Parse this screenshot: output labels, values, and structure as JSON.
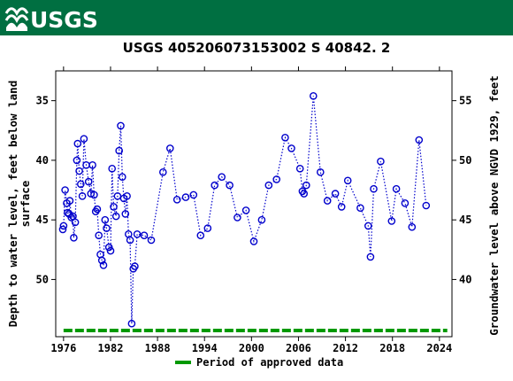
{
  "header": {
    "logo_text": "USGS",
    "background_color": "#006f41",
    "logo_icon": "usgs-wave-icon"
  },
  "chart_data": {
    "type": "scatter",
    "title": "USGS 405206073153002 S 40842. 2",
    "ylabel_left": [
      "Depth to water level, feet below land",
      "surface"
    ],
    "ylabel_right": "Groundwater level above NGVD 1929, feet",
    "x_ticks": [
      1976,
      1982,
      1988,
      1994,
      2000,
      2006,
      2012,
      2018,
      2024
    ],
    "xlim": [
      1975,
      2025.6
    ],
    "y_left_ticks": [
      35,
      40,
      45,
      50
    ],
    "y_left_lim": [
      32.5,
      54.8
    ],
    "y_left_inverted": true,
    "y_right_ticks": [
      55,
      50,
      45,
      40
    ],
    "series_color": "#0000cc",
    "marker": "open-circle",
    "line_style": "dotted",
    "points": [
      [
        1975.9,
        45.8
      ],
      [
        1976.0,
        45.5
      ],
      [
        1976.2,
        42.5
      ],
      [
        1976.4,
        43.6
      ],
      [
        1976.5,
        44.4
      ],
      [
        1976.7,
        44.5
      ],
      [
        1976.8,
        43.4
      ],
      [
        1977.0,
        44.8
      ],
      [
        1977.2,
        44.7
      ],
      [
        1977.3,
        46.5
      ],
      [
        1977.5,
        45.2
      ],
      [
        1977.7,
        40.0
      ],
      [
        1977.8,
        38.6
      ],
      [
        1978.0,
        40.9
      ],
      [
        1978.2,
        42.0
      ],
      [
        1978.4,
        43.0
      ],
      [
        1978.6,
        38.2
      ],
      [
        1978.9,
        40.4
      ],
      [
        1979.2,
        41.8
      ],
      [
        1979.5,
        42.8
      ],
      [
        1979.7,
        40.4
      ],
      [
        1979.9,
        42.9
      ],
      [
        1980.1,
        44.3
      ],
      [
        1980.3,
        44.1
      ],
      [
        1980.5,
        46.3
      ],
      [
        1980.7,
        47.9
      ],
      [
        1980.9,
        48.4
      ],
      [
        1981.1,
        48.8
      ],
      [
        1981.3,
        45.0
      ],
      [
        1981.5,
        45.7
      ],
      [
        1981.8,
        47.3
      ],
      [
        1982.0,
        47.6
      ],
      [
        1982.2,
        40.7
      ],
      [
        1982.4,
        43.9
      ],
      [
        1982.7,
        44.7
      ],
      [
        1982.9,
        43.0
      ],
      [
        1983.1,
        39.2
      ],
      [
        1983.3,
        37.1
      ],
      [
        1983.5,
        41.4
      ],
      [
        1983.7,
        43.2
      ],
      [
        1983.9,
        44.5
      ],
      [
        1984.1,
        43.0
      ],
      [
        1984.3,
        46.2
      ],
      [
        1984.5,
        46.7
      ],
      [
        1984.7,
        53.7
      ],
      [
        1984.9,
        49.1
      ],
      [
        1985.1,
        48.9
      ],
      [
        1985.4,
        46.2
      ],
      [
        1986.3,
        46.3
      ],
      [
        1987.2,
        46.7
      ],
      [
        1988.7,
        41.0
      ],
      [
        1989.6,
        39.0
      ],
      [
        1990.5,
        43.3
      ],
      [
        1991.6,
        43.1
      ],
      [
        1992.6,
        42.9
      ],
      [
        1993.5,
        46.3
      ],
      [
        1994.4,
        45.7
      ],
      [
        1995.3,
        42.1
      ],
      [
        1996.2,
        41.4
      ],
      [
        1997.2,
        42.1
      ],
      [
        1998.2,
        44.8
      ],
      [
        1999.3,
        44.2
      ],
      [
        2000.3,
        46.8
      ],
      [
        2001.3,
        45.0
      ],
      [
        2002.2,
        42.1
      ],
      [
        2003.2,
        41.6
      ],
      [
        2004.3,
        38.1
      ],
      [
        2005.1,
        39.0
      ],
      [
        2006.2,
        40.7
      ],
      [
        2006.5,
        42.6
      ],
      [
        2006.7,
        42.8
      ],
      [
        2007.0,
        42.1
      ],
      [
        2007.9,
        34.6
      ],
      [
        2008.8,
        41.0
      ],
      [
        2009.7,
        43.4
      ],
      [
        2010.7,
        42.8
      ],
      [
        2011.5,
        43.9
      ],
      [
        2012.3,
        41.7
      ],
      [
        2013.9,
        44.0
      ],
      [
        2014.9,
        45.5
      ],
      [
        2015.2,
        48.1
      ],
      [
        2015.6,
        42.4
      ],
      [
        2016.5,
        40.1
      ],
      [
        2017.9,
        45.1
      ],
      [
        2018.5,
        42.4
      ],
      [
        2019.6,
        43.6
      ],
      [
        2020.5,
        45.6
      ],
      [
        2021.4,
        38.3
      ],
      [
        2022.3,
        43.8
      ]
    ],
    "approved_period": {
      "start": 1976,
      "end": 2025,
      "color": "#009900",
      "style": "dashed"
    },
    "legend": {
      "label": "Period of approved data",
      "placement": "bottom-center"
    }
  }
}
